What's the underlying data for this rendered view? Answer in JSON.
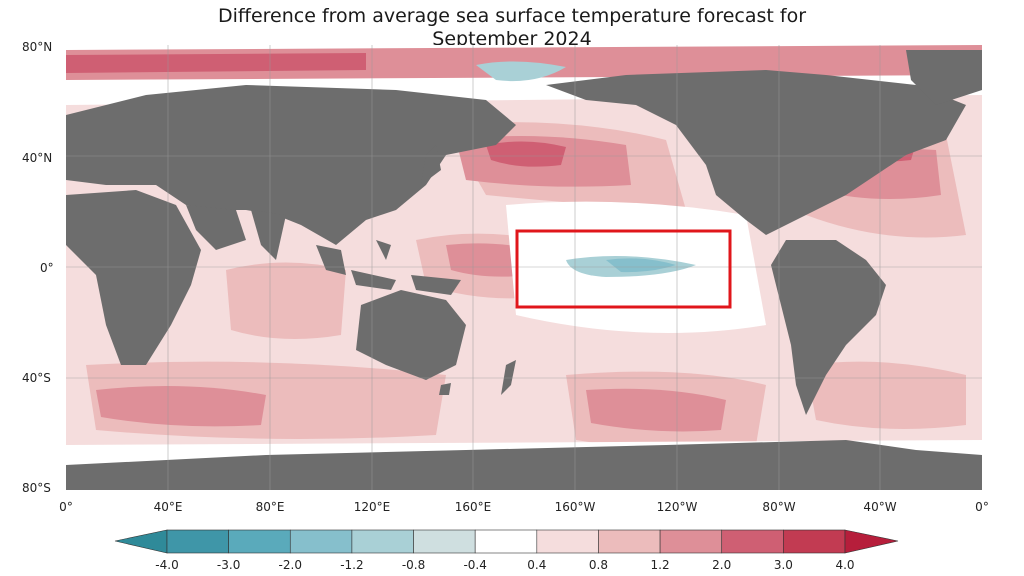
{
  "title": {
    "line1": "Difference from average sea surface temperature forecast for",
    "line2": "September 2024"
  },
  "latitude_labels": [
    "80°N",
    "40°N",
    "0°",
    "40°S",
    "80°S"
  ],
  "longitude_labels": [
    "0°",
    "40°E",
    "80°E",
    "120°E",
    "160°E",
    "160°W",
    "120°W",
    "80°W",
    "40°W",
    "0°"
  ],
  "colorbar": {
    "ticks": [
      "-4.0",
      "-3.0",
      "-2.0",
      "-1.2",
      "-0.8",
      "-0.4",
      "0.4",
      "0.8",
      "1.2",
      "2.0",
      "3.0",
      "4.0"
    ],
    "colors": [
      "#3f96a8",
      "#5aaabb",
      "#86bfcc",
      "#a9d0d6",
      "#cfdfe0",
      "#ffffff",
      "#f5dddd",
      "#ecbcbc",
      "#de8f98",
      "#cf5f73",
      "#c23b52"
    ],
    "extend_low_color": "#2f8a99",
    "extend_high_color": "#b61e3b"
  },
  "highlight": {
    "color": "#e0161b",
    "region": "central-eastern equatorial Pacific (La Niña cool anomaly)"
  },
  "colors": {
    "land": "#6d6d6d",
    "ocean_neutral": "#ffffff"
  }
}
